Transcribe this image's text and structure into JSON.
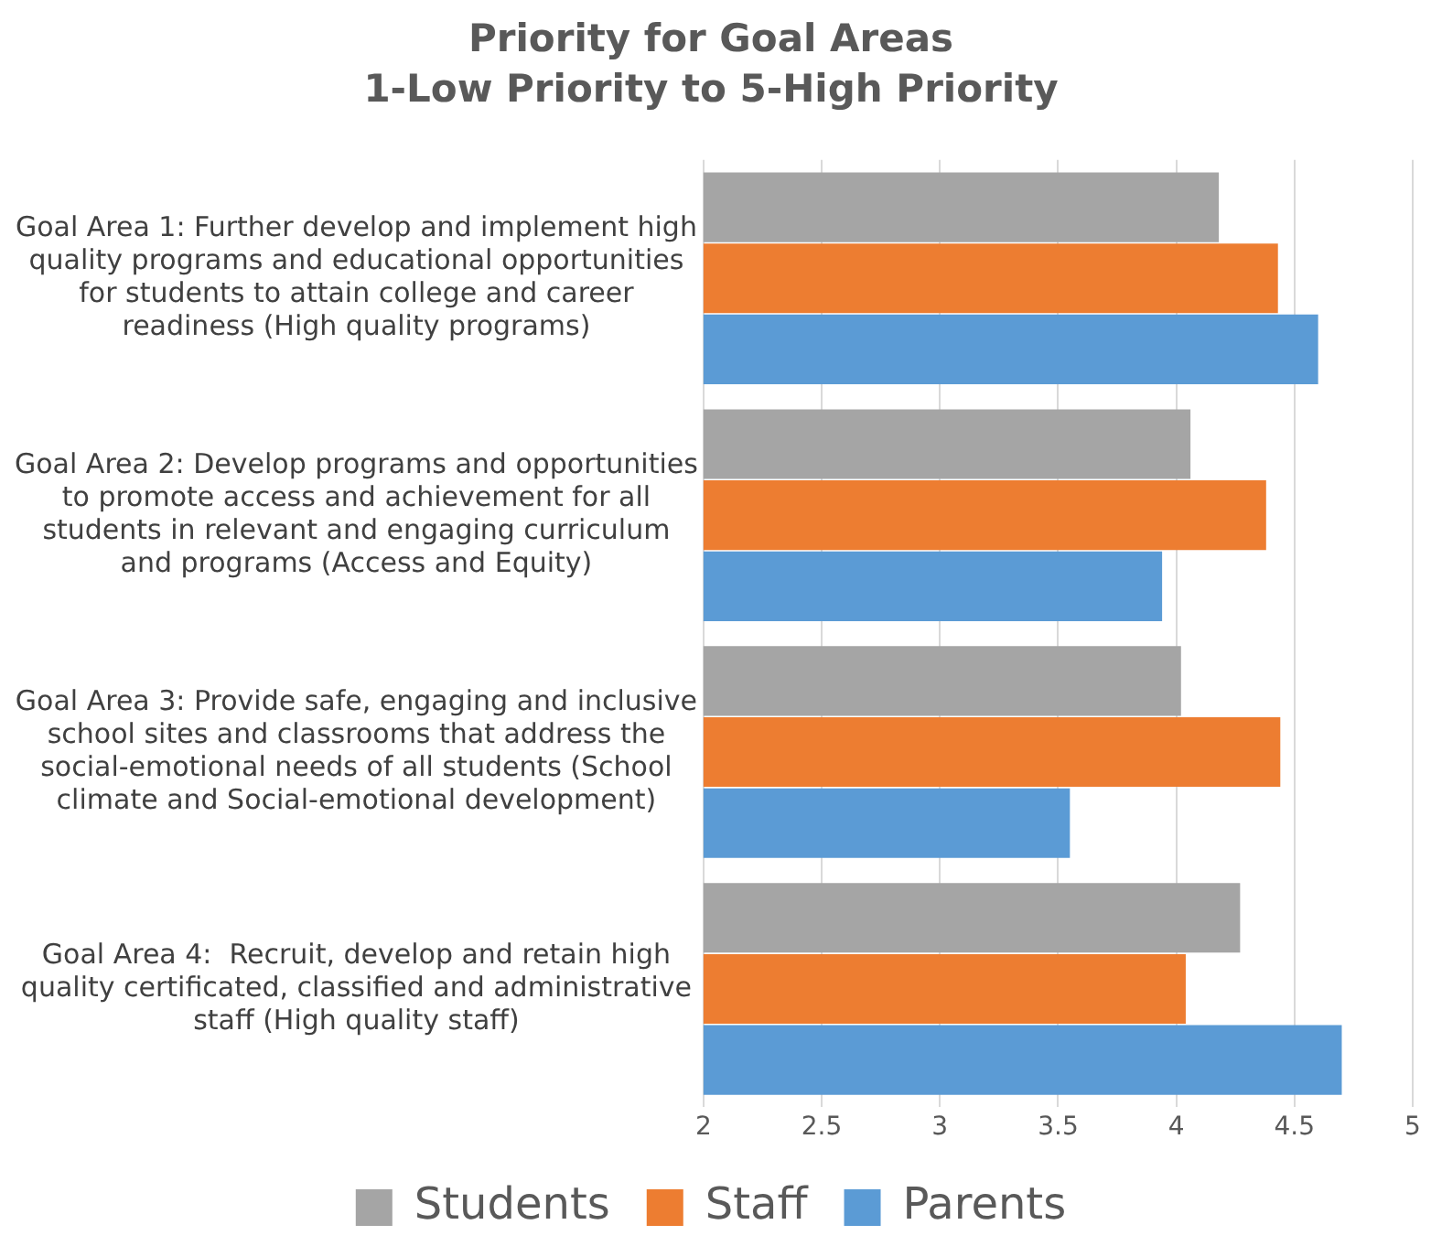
{
  "chart_data": {
    "type": "bar",
    "orientation": "horizontal",
    "title": "Priority for Goal Areas",
    "subtitle": "1-Low Priority to 5-High Priority",
    "categories": [
      "Goal Area 1: Further develop and implement high quality programs and educational opportunities for students to attain college and career readiness (High quality programs)",
      "Goal Area 2: Develop programs and opportunities to promote access and achievement for all students in relevant and engaging curriculum and programs (Access and Equity)",
      "Goal Area 3: Provide safe, engaging and inclusive school sites and classrooms that address the social-emotional needs of all students (School climate and Social-emotional development)",
      "Goal Area 4:  Recruit, develop and retain high quality certificated, classified and administrative staff (High quality staff)"
    ],
    "series": [
      {
        "name": "Students",
        "color": "#a5a5a5",
        "values": [
          4.18,
          4.06,
          4.02,
          4.27
        ]
      },
      {
        "name": "Staff",
        "color": "#ed7d31",
        "values": [
          4.43,
          4.38,
          4.44,
          4.04
        ]
      },
      {
        "name": "Parents",
        "color": "#5b9bd5",
        "values": [
          4.6,
          3.94,
          3.55,
          4.7
        ]
      }
    ],
    "xlim": [
      2,
      5
    ],
    "xticks": [
      2,
      2.5,
      3,
      3.5,
      4,
      4.5,
      5
    ],
    "grid": "x",
    "legend": "bottom"
  }
}
